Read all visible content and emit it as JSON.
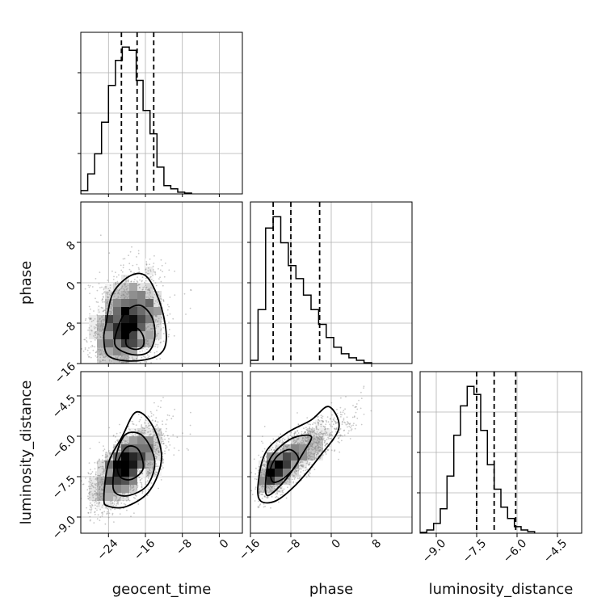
{
  "chart_data": {
    "type": "corner",
    "grid": true,
    "colors": {
      "line": "#000000",
      "points": "#888888",
      "grid": "#b0b0b0"
    },
    "parameters": [
      {
        "name": "geocent_time",
        "range": [
          -30,
          5
        ],
        "ticks": [
          "−24",
          "−16",
          "−8",
          "0"
        ],
        "tick_values": [
          -24,
          -16,
          -8,
          0
        ],
        "quantiles": [
          -21.2,
          -17.8,
          -14.2
        ],
        "hist_edges_start": -30,
        "hist_bin_width": 1.5,
        "hist_counts": [
          0.02,
          0.12,
          0.24,
          0.43,
          0.65,
          0.8,
          0.88,
          0.86,
          0.68,
          0.5,
          0.36,
          0.16,
          0.05,
          0.03,
          0.01,
          0.005
        ]
      },
      {
        "name": "phase",
        "range": [
          -16,
          16
        ],
        "ticks": [
          "−16",
          "−8",
          "0",
          "8"
        ],
        "tick_values": [
          -16,
          -8,
          0,
          8
        ],
        "quantiles": [
          -11.5,
          -8.0,
          -2.3
        ],
        "hist_edges_start": -16,
        "hist_bin_width": 1.5,
        "hist_counts": [
          0.02,
          0.33,
          0.83,
          0.9,
          0.74,
          0.6,
          0.52,
          0.42,
          0.33,
          0.24,
          0.16,
          0.1,
          0.06,
          0.035,
          0.02,
          0.005
        ]
      },
      {
        "name": "luminosity_distance",
        "range": [
          -9.6,
          -3.6
        ],
        "ticks": [
          "−9.0",
          "−7.5",
          "−6.0",
          "−4.5"
        ],
        "tick_values": [
          -9.0,
          -7.5,
          -6.0,
          -4.5
        ],
        "quantiles": [
          -7.5,
          -6.85,
          -6.05
        ],
        "hist_edges_start": -9.6,
        "hist_bin_width": 0.25,
        "hist_counts": [
          0.005,
          0.02,
          0.06,
          0.15,
          0.35,
          0.6,
          0.78,
          0.9,
          0.85,
          0.63,
          0.42,
          0.27,
          0.16,
          0.09,
          0.04,
          0.02,
          0.01
        ]
      }
    ],
    "correlations": {
      "geocent_time-phase": 0.25,
      "geocent_time-luminosity_distance": 0.6,
      "phase-luminosity_distance": 0.8
    },
    "contours": {
      "geocent_time-phase": [
        {
          "level": "inner",
          "points": [
            [
              -20,
              -10.5
            ],
            [
              -18,
              -9
            ],
            [
              -16.5,
              -10.5
            ],
            [
              -16.5,
              -12.5
            ],
            [
              -18,
              -13.2
            ],
            [
              -20,
              -12.5
            ]
          ]
        },
        {
          "level": "middle",
          "points": [
            [
              -22,
              -9
            ],
            [
              -20,
              -5.5
            ],
            [
              -17,
              -4.5
            ],
            [
              -14.5,
              -7
            ],
            [
              -14,
              -11
            ],
            [
              -15.5,
              -13.8
            ],
            [
              -19,
              -14.2
            ],
            [
              -22.5,
              -12.5
            ]
          ]
        },
        {
          "level": "outer",
          "points": [
            [
              -24.5,
              -8
            ],
            [
              -23,
              -2
            ],
            [
              -19,
              1.5
            ],
            [
              -15.5,
              1
            ],
            [
              -12.5,
              -5
            ],
            [
              -11.5,
              -11.5
            ],
            [
              -13.5,
              -14.5
            ],
            [
              -19,
              -15.5
            ],
            [
              -24,
              -14.5
            ],
            [
              -25,
              -11
            ]
          ]
        }
      ],
      "geocent_time-luminosity_distance": [
        {
          "level": "inner",
          "points": [
            [
              -22,
              -7.0
            ],
            [
              -20,
              -6.4
            ],
            [
              -17.5,
              -6.5
            ],
            [
              -16.5,
              -7.2
            ],
            [
              -19,
              -7.6
            ],
            [
              -21.5,
              -7.5
            ]
          ]
        },
        {
          "level": "middle",
          "points": [
            [
              -23,
              -7.6
            ],
            [
              -22,
              -6.5
            ],
            [
              -20,
              -5.9
            ],
            [
              -16.5,
              -6.0
            ],
            [
              -14,
              -6.9
            ],
            [
              -15.5,
              -7.8
            ],
            [
              -19.5,
              -8.2
            ],
            [
              -22.5,
              -8.1
            ]
          ]
        },
        {
          "level": "outer",
          "points": [
            [
              -25,
              -8.3
            ],
            [
              -24,
              -7.0
            ],
            [
              -21,
              -6.0
            ],
            [
              -18,
              -5.1
            ],
            [
              -14.5,
              -5.6
            ],
            [
              -12.5,
              -6.8
            ],
            [
              -15,
              -8.0
            ],
            [
              -20,
              -8.6
            ],
            [
              -24,
              -8.6
            ]
          ]
        }
      ],
      "phase-luminosity_distance": [
        {
          "level": "inner",
          "points": [
            [
              -12,
              -7.2
            ],
            [
              -10.5,
              -6.7
            ],
            [
              -8,
              -6.5
            ],
            [
              -6.5,
              -6.9
            ],
            [
              -9,
              -7.5
            ],
            [
              -11.5,
              -7.7
            ]
          ]
        },
        {
          "level": "middle",
          "points": [
            [
              -13,
              -7.7
            ],
            [
              -12,
              -6.8
            ],
            [
              -8,
              -6.1
            ],
            [
              -4,
              -6.0
            ],
            [
              -5.5,
              -6.6
            ],
            [
              -9,
              -7.6
            ],
            [
              -12.5,
              -8.2
            ]
          ]
        },
        {
          "level": "outer",
          "points": [
            [
              -14.5,
              -7.8
            ],
            [
              -13,
              -6.6
            ],
            [
              -9,
              -5.9
            ],
            [
              -4,
              -5.4
            ],
            [
              -0.5,
              -4.9
            ],
            [
              1.5,
              -5.7
            ],
            [
              -2.5,
              -6.8
            ],
            [
              -7,
              -7.8
            ],
            [
              -11,
              -8.4
            ],
            [
              -14,
              -8.4
            ]
          ]
        }
      ]
    }
  }
}
